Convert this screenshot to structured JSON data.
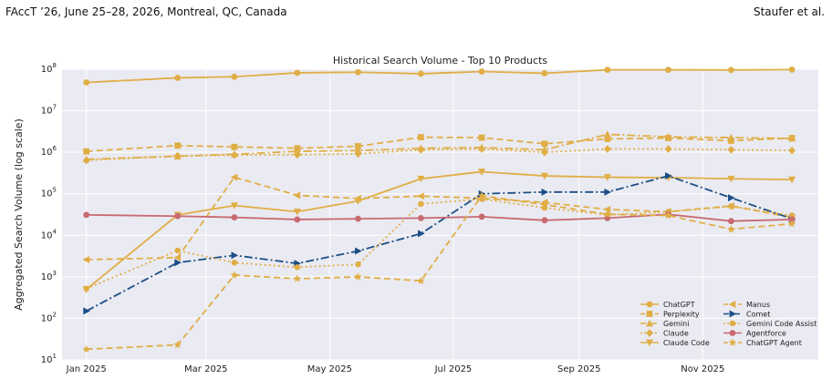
{
  "header": {
    "left": "FAccT ’26, June 25–28, 2026, Montreal, QC, Canada",
    "right": "Staufer et al."
  },
  "colors": {
    "gold": "#E0AE45",
    "blue": "#1B4F86",
    "red": "#C86A72",
    "plot_bg": "#EAEAF2",
    "grid": "#ffffff"
  },
  "chart_data": {
    "type": "line",
    "title": "Historical Search Volume - Top 10 Products",
    "xlabel": "",
    "ylabel": "Aggregated Search Volume (log scale)",
    "yscale": "log",
    "ylim": [
      10,
      100000000
    ],
    "xlim": [
      "2024-12-20",
      "2025-12-28"
    ],
    "grid": true,
    "legend_position": "lower right",
    "x_ticks": [
      "Jan 2025",
      "Mar 2025",
      "May 2025",
      "Jul 2025",
      "Sep 2025",
      "Nov 2025"
    ],
    "y_ticks": [
      "10^1",
      "10^2",
      "10^3",
      "10^4",
      "10^5",
      "10^6",
      "10^7",
      "10^8"
    ],
    "x": [
      "2025-01-01",
      "2025-02-15",
      "2025-03-15",
      "2025-04-15",
      "2025-05-15",
      "2025-06-15",
      "2025-07-15",
      "2025-08-15",
      "2025-09-15",
      "2025-10-15",
      "2025-11-15",
      "2025-12-15"
    ],
    "series": [
      {
        "name": "ChatGPT",
        "color": "#E0AE45",
        "dash": "solid",
        "marker": "circle",
        "values": [
          48000000,
          62000000,
          66000000,
          82000000,
          85000000,
          78000000,
          88000000,
          80000000,
          97000000,
          97000000,
          96000000,
          98000000
        ]
      },
      {
        "name": "Perplexity",
        "color": "#E0AE45",
        "dash": "dashed",
        "marker": "square",
        "values": [
          1050000,
          1450000,
          1350000,
          1250000,
          1400000,
          2300000,
          2250000,
          1600000,
          2100000,
          2200000,
          1900000,
          2200000
        ]
      },
      {
        "name": "Gemini",
        "color": "#E0AE45",
        "dash": "dashdot",
        "marker": "triangle-up",
        "values": [
          680000,
          800000,
          900000,
          1050000,
          1100000,
          1250000,
          1300000,
          1150000,
          2700000,
          2350000,
          2250000,
          2150000
        ]
      },
      {
        "name": "Claude",
        "color": "#E0AE45",
        "dash": "dotted",
        "marker": "diamond",
        "values": [
          640000,
          820000,
          860000,
          870000,
          920000,
          1150000,
          1200000,
          1000000,
          1200000,
          1200000,
          1150000,
          1100000
        ]
      },
      {
        "name": "Claude Code",
        "color": "#E0AE45",
        "dash": "solid",
        "marker": "triangle-down",
        "values": [
          500,
          31000,
          52000,
          37000,
          67000,
          230000,
          340000,
          270000,
          250000,
          245000,
          230000,
          220000
        ]
      },
      {
        "name": "Manus",
        "color": "#E0AE45",
        "dash": "dashed",
        "marker": "triangle-left",
        "values": [
          2600,
          2900,
          250000,
          92000,
          77000,
          88000,
          78000,
          62000,
          42000,
          37000,
          51000,
          27000
        ]
      },
      {
        "name": "Comet",
        "color": "#1B4F86",
        "dash": "dashdot",
        "marker": "triangle-right",
        "values": [
          150,
          2200,
          3300,
          2100,
          4200,
          11000,
          100000,
          110000,
          110000,
          270000,
          80000,
          25000
        ]
      },
      {
        "name": "Gemini Code Assist",
        "color": "#E0AE45",
        "dash": "dotted",
        "marker": "octagon",
        "values": [
          520,
          4300,
          2200,
          1700,
          2000,
          57000,
          75000,
          46000,
          31000,
          37000,
          50000,
          30000
        ]
      },
      {
        "name": "Agentforce",
        "color": "#C86A72",
        "dash": "solid",
        "marker": "circle",
        "values": [
          31000,
          29000,
          27000,
          24000,
          25000,
          26000,
          28000,
          23000,
          26000,
          32000,
          22000,
          24000
        ]
      },
      {
        "name": "ChatGPT Agent",
        "color": "#E0AE45",
        "dash": "dashed",
        "marker": "star",
        "values": [
          18,
          23,
          1100,
          900,
          1000,
          800,
          90000,
          55000,
          32000,
          30000,
          14000,
          19000
        ]
      }
    ]
  }
}
